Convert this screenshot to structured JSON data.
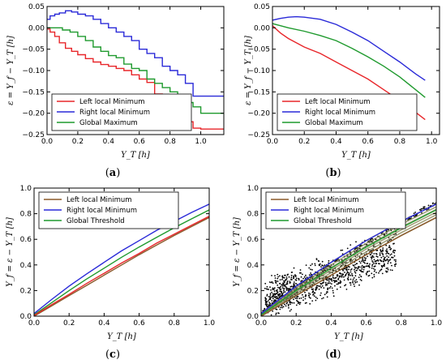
{
  "chart_data": [
    {
      "panel": "(a)",
      "type": "line",
      "step": true,
      "xlabel": "Y_T [h]",
      "ylabel": "ε = Y_f − Y_T [h]",
      "xlim": [
        0,
        1.15
      ],
      "ylim": [
        -0.25,
        0.05
      ],
      "xticks": [
        0.0,
        0.2,
        0.4,
        0.6,
        0.8,
        1.0
      ],
      "xtick_labels": [
        "0.0",
        "0.2",
        "0.4",
        "0.6",
        "0.8",
        "1.0"
      ],
      "yticks": [
        -0.25,
        -0.2,
        -0.15,
        -0.1,
        -0.05,
        0.0,
        0.05
      ],
      "ytick_labels": [
        "−0.25",
        "−0.20",
        "−0.15",
        "−0.10",
        "−0.05",
        "0.00",
        "0.05"
      ],
      "legend_position": "bottom-left",
      "series": [
        {
          "name": "Left local Minimum",
          "color": "#e8262a",
          "x": [
            0.0,
            0.02,
            0.05,
            0.08,
            0.12,
            0.16,
            0.2,
            0.25,
            0.3,
            0.35,
            0.4,
            0.45,
            0.5,
            0.55,
            0.6,
            0.65,
            0.7,
            0.75,
            0.8,
            0.85,
            0.9,
            0.95,
            1.0,
            1.15
          ],
          "y": [
            -0.003,
            -0.01,
            -0.02,
            -0.035,
            -0.048,
            -0.055,
            -0.063,
            -0.072,
            -0.08,
            -0.086,
            -0.09,
            -0.095,
            -0.1,
            -0.11,
            -0.12,
            -0.128,
            -0.155,
            -0.16,
            -0.175,
            -0.185,
            -0.22,
            -0.235,
            -0.237,
            -0.237
          ]
        },
        {
          "name": "Right local Minimum",
          "color": "#2a2ad8",
          "x": [
            0.0,
            0.02,
            0.05,
            0.08,
            0.12,
            0.16,
            0.2,
            0.25,
            0.3,
            0.35,
            0.4,
            0.45,
            0.5,
            0.55,
            0.6,
            0.65,
            0.7,
            0.75,
            0.8,
            0.85,
            0.9,
            0.95,
            1.0,
            1.15
          ],
          "y": [
            0.02,
            0.028,
            0.032,
            0.035,
            0.04,
            0.037,
            0.032,
            0.028,
            0.02,
            0.01,
            0.0,
            -0.01,
            -0.02,
            -0.03,
            -0.05,
            -0.06,
            -0.07,
            -0.09,
            -0.1,
            -0.11,
            -0.13,
            -0.16,
            -0.16,
            -0.16
          ]
        },
        {
          "name": "Global Maximum",
          "color": "#1f9a2e",
          "x": [
            0.0,
            0.05,
            0.1,
            0.15,
            0.2,
            0.25,
            0.3,
            0.35,
            0.4,
            0.45,
            0.5,
            0.55,
            0.6,
            0.65,
            0.7,
            0.75,
            0.8,
            0.85,
            0.9,
            0.95,
            1.0,
            1.15
          ],
          "y": [
            0.0,
            0.0,
            -0.005,
            -0.01,
            -0.02,
            -0.03,
            -0.045,
            -0.055,
            -0.065,
            -0.07,
            -0.085,
            -0.095,
            -0.1,
            -0.12,
            -0.13,
            -0.14,
            -0.15,
            -0.165,
            -0.175,
            -0.185,
            -0.2,
            -0.2
          ]
        }
      ]
    },
    {
      "panel": "(b)",
      "type": "line",
      "xlabel": "Y_T [h]",
      "ylabel": "ε = Y_f − Y_T [h]",
      "xlim": [
        0,
        1.05
      ],
      "ylim": [
        -0.25,
        0.05
      ],
      "xticks": [
        0.0,
        0.2,
        0.4,
        0.6,
        0.8,
        1.0
      ],
      "xtick_labels": [
        "0.0",
        "0.2",
        "0.4",
        "0.6",
        "0.8",
        "1.0"
      ],
      "yticks": [
        -0.25,
        -0.2,
        -0.15,
        -0.1,
        -0.05,
        0.0,
        0.05
      ],
      "ytick_labels": [
        "−0.25",
        "−0.20",
        "−0.15",
        "−0.10",
        "−0.05",
        "0.00",
        "0.05"
      ],
      "legend_position": "bottom-left",
      "series": [
        {
          "name": "Left local Minimum",
          "color": "#e8262a",
          "x": [
            0.0,
            0.05,
            0.1,
            0.15,
            0.2,
            0.3,
            0.4,
            0.5,
            0.6,
            0.7,
            0.8,
            0.9,
            0.96
          ],
          "y": [
            0.005,
            -0.012,
            -0.025,
            -0.035,
            -0.045,
            -0.06,
            -0.08,
            -0.1,
            -0.12,
            -0.145,
            -0.17,
            -0.198,
            -0.215
          ]
        },
        {
          "name": "Right local Minimum",
          "color": "#2a2ad8",
          "x": [
            0.0,
            0.05,
            0.1,
            0.15,
            0.2,
            0.3,
            0.4,
            0.5,
            0.6,
            0.7,
            0.8,
            0.9,
            0.96
          ],
          "y": [
            0.018,
            0.022,
            0.025,
            0.026,
            0.025,
            0.02,
            0.008,
            -0.01,
            -0.03,
            -0.055,
            -0.08,
            -0.108,
            -0.123
          ]
        },
        {
          "name": "Global Maximum",
          "color": "#1f9a2e",
          "x": [
            0.0,
            0.05,
            0.1,
            0.2,
            0.3,
            0.4,
            0.5,
            0.6,
            0.7,
            0.8,
            0.9,
            0.96
          ],
          "y": [
            0.01,
            0.005,
            0.0,
            -0.008,
            -0.018,
            -0.03,
            -0.048,
            -0.068,
            -0.09,
            -0.115,
            -0.145,
            -0.163
          ]
        }
      ]
    },
    {
      "panel": "(c)",
      "type": "line",
      "xlabel": "Y_T [h]",
      "ylabel": "Y_f = ε − Y_T [h]",
      "xlim": [
        0,
        1.0
      ],
      "ylim": [
        0,
        1.0
      ],
      "xticks": [
        0.0,
        0.2,
        0.4,
        0.6,
        0.8,
        1.0
      ],
      "xtick_labels": [
        "0.0",
        "0.2",
        "0.4",
        "0.6",
        "0.8",
        "1.0"
      ],
      "yticks": [
        0.0,
        0.2,
        0.4,
        0.6,
        0.8,
        1.0
      ],
      "ytick_labels": [
        "0.0",
        "0.2",
        "0.4",
        "0.6",
        "0.8",
        "1.0"
      ],
      "legend_position": "top-left",
      "series": [
        {
          "name": "Left local Minimum",
          "color": "#8b5a2b",
          "x": [
            0.0,
            0.1,
            0.2,
            0.3,
            0.4,
            0.5,
            0.6,
            0.7,
            0.8,
            0.9,
            1.0
          ],
          "y": [
            0.0,
            0.08,
            0.16,
            0.24,
            0.32,
            0.4,
            0.48,
            0.555,
            0.63,
            0.7,
            0.77
          ]
        },
        {
          "name": "Right local Minimum",
          "color": "#2a2ad8",
          "x": [
            0.0,
            0.1,
            0.2,
            0.3,
            0.4,
            0.5,
            0.6,
            0.7,
            0.8,
            0.9,
            1.0
          ],
          "y": [
            0.02,
            0.13,
            0.235,
            0.33,
            0.42,
            0.51,
            0.59,
            0.67,
            0.74,
            0.81,
            0.875
          ]
        },
        {
          "name": "Global Threshold",
          "color": "#1f9a2e",
          "x": [
            0.0,
            0.1,
            0.2,
            0.3,
            0.4,
            0.5,
            0.6,
            0.7,
            0.8,
            0.9,
            1.0
          ],
          "y": [
            0.01,
            0.105,
            0.2,
            0.29,
            0.375,
            0.46,
            0.54,
            0.615,
            0.69,
            0.76,
            0.83
          ]
        },
        {
          "name": "",
          "color": "#e8262a",
          "x": [
            0.0,
            0.1,
            0.2,
            0.3,
            0.4,
            0.5,
            0.6,
            0.7,
            0.8,
            0.9,
            1.0
          ],
          "y": [
            0.005,
            0.09,
            0.17,
            0.255,
            0.335,
            0.415,
            0.49,
            0.57,
            0.64,
            0.71,
            0.78
          ]
        }
      ]
    },
    {
      "panel": "(d)",
      "type": "scatter",
      "xlabel": "Y_T [h]",
      "ylabel": "Y_f = ε − Y_T [h]",
      "xlim": [
        0,
        1.0
      ],
      "ylim": [
        0,
        1.0
      ],
      "xticks": [
        0.0,
        0.2,
        0.4,
        0.6,
        0.8,
        1.0
      ],
      "xtick_labels": [
        "0.0",
        "0.2",
        "0.4",
        "0.6",
        "0.8",
        "1.0"
      ],
      "yticks": [
        0.0,
        0.2,
        0.4,
        0.6,
        0.8,
        1.0
      ],
      "ytick_labels": [
        "0.0",
        "0.2",
        "0.4",
        "0.6",
        "0.8",
        "1.0"
      ],
      "legend_position": "top-left",
      "series": [
        {
          "name": "Left local Minimum",
          "color": "#8b5a2b",
          "x": [
            0.0,
            0.2,
            0.4,
            0.6,
            0.8,
            1.0
          ],
          "y": [
            0.0,
            0.16,
            0.32,
            0.48,
            0.63,
            0.77
          ]
        },
        {
          "name": "Right local Minimum",
          "color": "#2a2ad8",
          "x": [
            0.0,
            0.2,
            0.4,
            0.6,
            0.8,
            1.0
          ],
          "y": [
            0.02,
            0.235,
            0.42,
            0.59,
            0.74,
            0.875
          ]
        },
        {
          "name": "Global Threshold",
          "color": "#1f9a2e",
          "x": [
            0.0,
            0.2,
            0.4,
            0.6,
            0.8,
            1.0
          ],
          "y": [
            0.01,
            0.2,
            0.375,
            0.54,
            0.69,
            0.83
          ]
        }
      ],
      "points_color": "#000000"
    }
  ]
}
